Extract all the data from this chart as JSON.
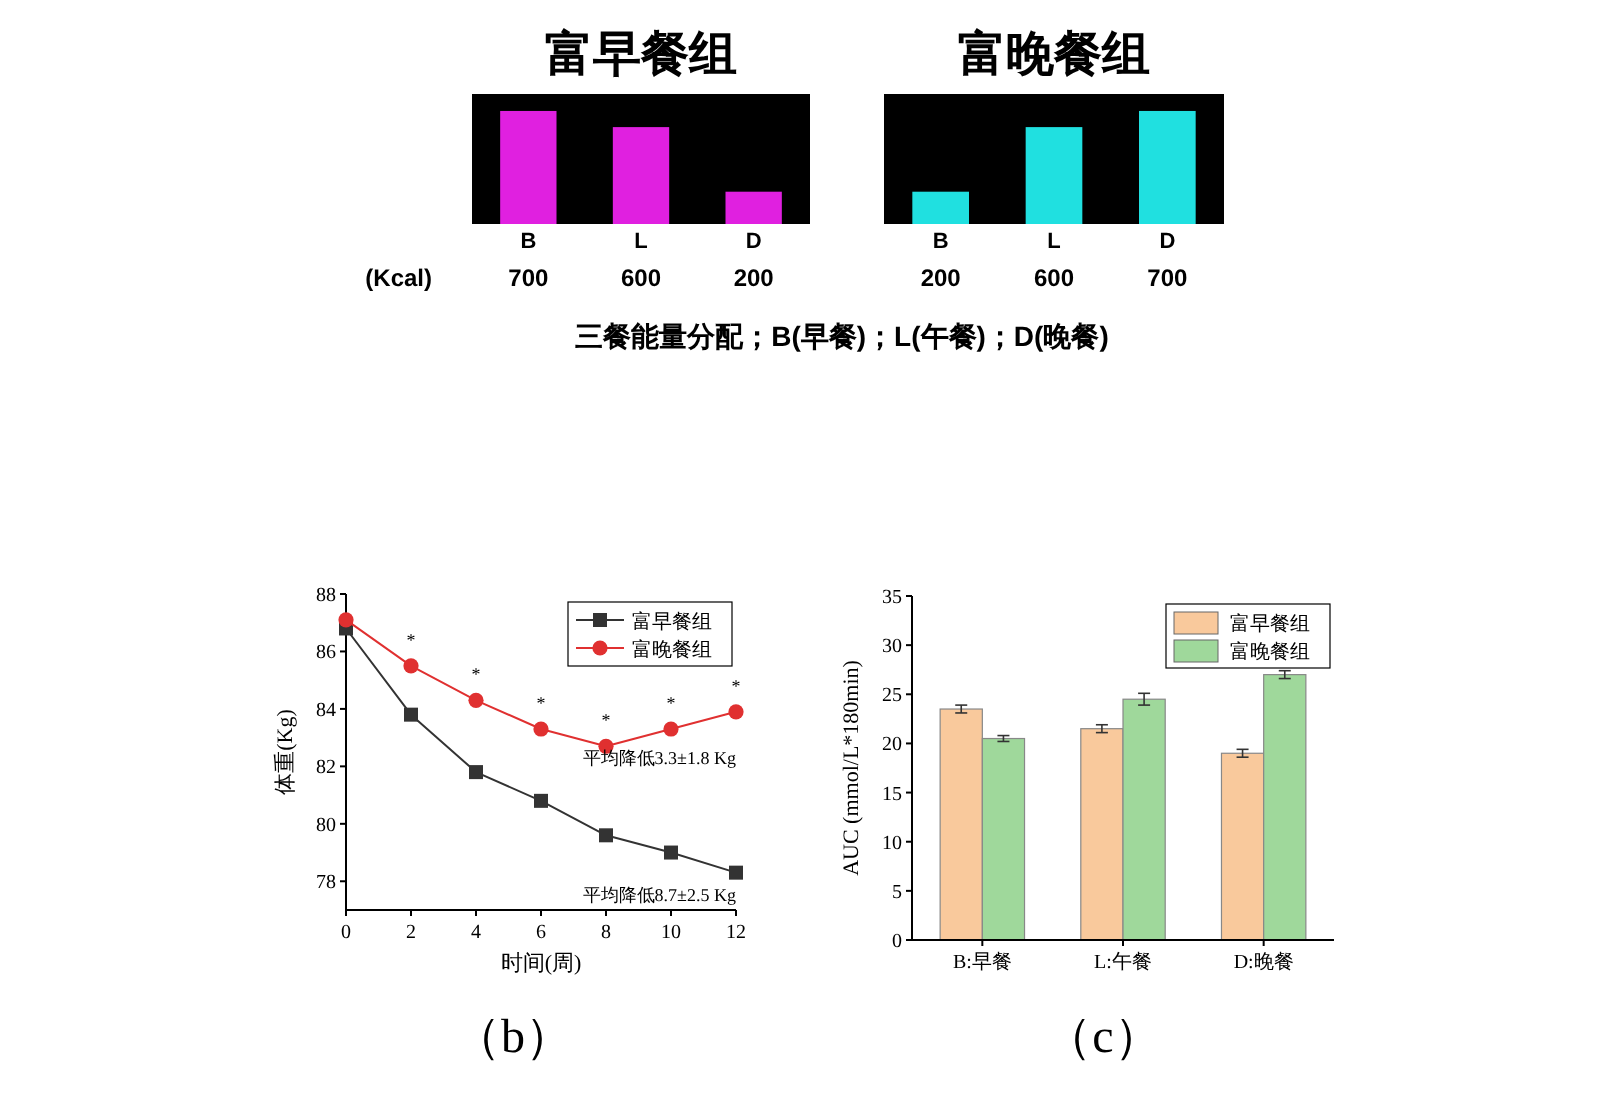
{
  "chart_data": [
    {
      "type": "bar",
      "title": "富早餐组",
      "categories": [
        "B",
        "L",
        "D"
      ],
      "values": [
        700,
        600,
        200
      ],
      "color": "#e020e0",
      "data_labels": true,
      "annotations": [
        "(Kcal)"
      ]
    },
    {
      "type": "bar",
      "title": "富晚餐组",
      "categories": [
        "B",
        "L",
        "D"
      ],
      "values": [
        200,
        600,
        700
      ],
      "color": "#20e0e0",
      "data_labels": true,
      "annotations": [
        "三餐能量分配；B(早餐)；L(午餐)；D(晚餐)"
      ]
    },
    {
      "type": "line",
      "xlabel": "时间(周)",
      "ylabel": "体重(Kg)",
      "x": [
        0,
        2,
        4,
        6,
        8,
        10,
        12
      ],
      "xlim": [
        0,
        12
      ],
      "xticks": [
        0,
        2,
        4,
        6,
        8,
        10,
        12
      ],
      "ylim": [
        77,
        88
      ],
      "yticks": [
        78,
        80,
        82,
        84,
        86,
        88
      ],
      "legend": "top right",
      "grid": false,
      "series": [
        {
          "name": "富早餐组",
          "color": "#333333",
          "marker": "square",
          "values": [
            86.8,
            83.8,
            81.8,
            80.8,
            79.6,
            79.0,
            78.3
          ]
        },
        {
          "name": "富晚餐组",
          "color": "#e03030",
          "marker": "circle",
          "values": [
            87.1,
            85.5,
            84.3,
            83.3,
            82.7,
            83.3,
            83.9
          ]
        }
      ],
      "annotations": [
        {
          "text": "*",
          "x": 2,
          "y": 85.5
        },
        {
          "text": "*",
          "x": 4,
          "y": 84.3
        },
        {
          "text": "*",
          "x": 6,
          "y": 83.3
        },
        {
          "text": "*",
          "x": 8,
          "y": 82.7
        },
        {
          "text": "*",
          "x": 10,
          "y": 83.3
        },
        {
          "text": "*",
          "x": 12,
          "y": 83.9
        },
        {
          "text": "平均降低3.3±1.8 Kg",
          "x": 12,
          "y": 83.9
        },
        {
          "text": "平均降低8.7±2.5 Kg",
          "x": 12,
          "y": 78.3
        },
        "（b）"
      ]
    },
    {
      "type": "bar",
      "ylabel": "AUC (mmol/L*180min)",
      "categories": [
        "B:早餐",
        "L:午餐",
        "D:晚餐"
      ],
      "ylim": [
        0,
        35
      ],
      "yticks": [
        0,
        5,
        10,
        15,
        20,
        25,
        30,
        35
      ],
      "legend": "top right",
      "grid": false,
      "series": [
        {
          "name": "富早餐组",
          "color": "#f9c99c",
          "values": [
            23.5,
            21.5,
            19.0
          ],
          "errors": [
            0.4,
            0.4,
            0.4
          ]
        },
        {
          "name": "富晚餐组",
          "color": "#9fd89b",
          "values": [
            20.5,
            24.5,
            27.0
          ],
          "errors": [
            0.3,
            0.6,
            0.4
          ]
        }
      ],
      "annotations": [
        "（c）"
      ]
    }
  ]
}
